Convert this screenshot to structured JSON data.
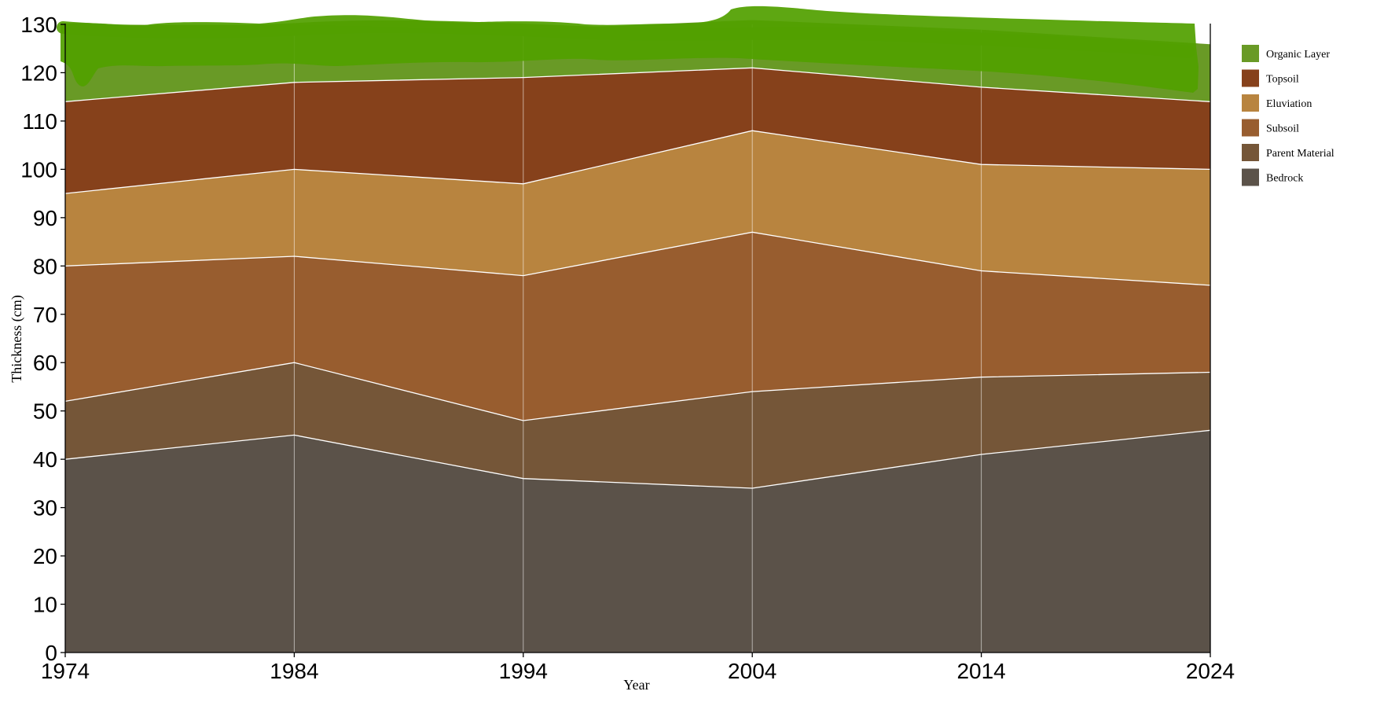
{
  "chart_data": {
    "type": "area",
    "stacked": true,
    "xlabel": "Year",
    "ylabel": "Thickness (cm)",
    "xlim": [
      1974,
      2024
    ],
    "ylim": [
      0,
      130
    ],
    "x": [
      1974,
      1984,
      1994,
      2004,
      2014,
      2024
    ],
    "x_ticks": [
      "1974",
      "1984",
      "1994",
      "2004",
      "2014",
      "2024"
    ],
    "y_ticks": [
      "0",
      "10",
      "20",
      "30",
      "40",
      "50",
      "60",
      "70",
      "80",
      "90",
      "100",
      "110",
      "120",
      "130"
    ],
    "grid": "vertical",
    "legend_position": "right",
    "series": [
      {
        "name": "Bedrock",
        "color": "#5b5249",
        "values": [
          40,
          45,
          36,
          34,
          41,
          46
        ]
      },
      {
        "name": "Parent Material",
        "color": "#755638",
        "values": [
          12,
          15,
          12,
          20,
          16,
          12
        ]
      },
      {
        "name": "Subsoil",
        "color": "#985d2f",
        "values": [
          28,
          22,
          30,
          33,
          22,
          18
        ]
      },
      {
        "name": "Eluviation",
        "color": "#b8843f",
        "values": [
          15,
          18,
          19,
          21,
          22,
          24
        ]
      },
      {
        "name": "Topsoil",
        "color": "#86411b",
        "values": [
          19,
          18,
          22,
          13,
          16,
          14
        ]
      },
      {
        "name": "Organic Layer",
        "color": "#699a26",
        "values": [
          16,
          12,
          10,
          10,
          12,
          12
        ]
      }
    ],
    "annotation_overlay": {
      "description": "green hand-drawn highlight strokes over top of chart",
      "color": "#52a000"
    }
  }
}
